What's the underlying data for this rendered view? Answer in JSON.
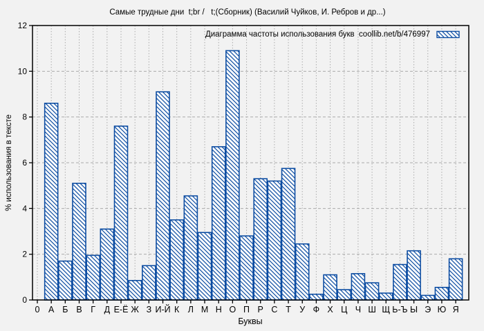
{
  "chart_data": {
    "type": "bar",
    "title": "Самые трудные дни  t;br /   t;(Сборник) (Василий Чуйков, И. Ребров и др...)",
    "legend": "Диаграмма частоты использования букв  coollib.net/b/476997",
    "xlabel": "Буквы",
    "ylabel": "% использования в тексте",
    "origin_label": "0",
    "categories": [
      "А",
      "Б",
      "В",
      "Г",
      "Д",
      "Е-Ё",
      "Ж",
      "З",
      "И-Й",
      "К",
      "Л",
      "М",
      "Н",
      "О",
      "П",
      "Р",
      "С",
      "Т",
      "У",
      "Ф",
      "Х",
      "Ц",
      "Ч",
      "Ш",
      "Щ",
      "Ь-Ъ",
      "Ы",
      "Э",
      "Ю",
      "Я"
    ],
    "values": [
      8.6,
      1.7,
      5.1,
      1.95,
      3.1,
      7.6,
      0.85,
      1.5,
      9.1,
      3.5,
      4.55,
      2.95,
      6.7,
      10.9,
      2.8,
      5.3,
      5.2,
      5.75,
      2.45,
      0.25,
      1.1,
      0.45,
      1.15,
      0.75,
      0.3,
      1.55,
      2.15,
      0.2,
      0.55,
      1.8
    ],
    "ylim": [
      0,
      12
    ],
    "yticks": [
      0,
      2,
      4,
      6,
      8,
      10,
      12
    ],
    "grid": true,
    "legend_position": "top-right",
    "hatch_style": "diagonal-backslash",
    "colors": {
      "bar_hatch": "#0d4da2",
      "bar_fill": "#ffffff",
      "grid": "#aaaaaa",
      "axis": "#000000",
      "text": "#000000",
      "background": "#f2f2f2"
    }
  }
}
